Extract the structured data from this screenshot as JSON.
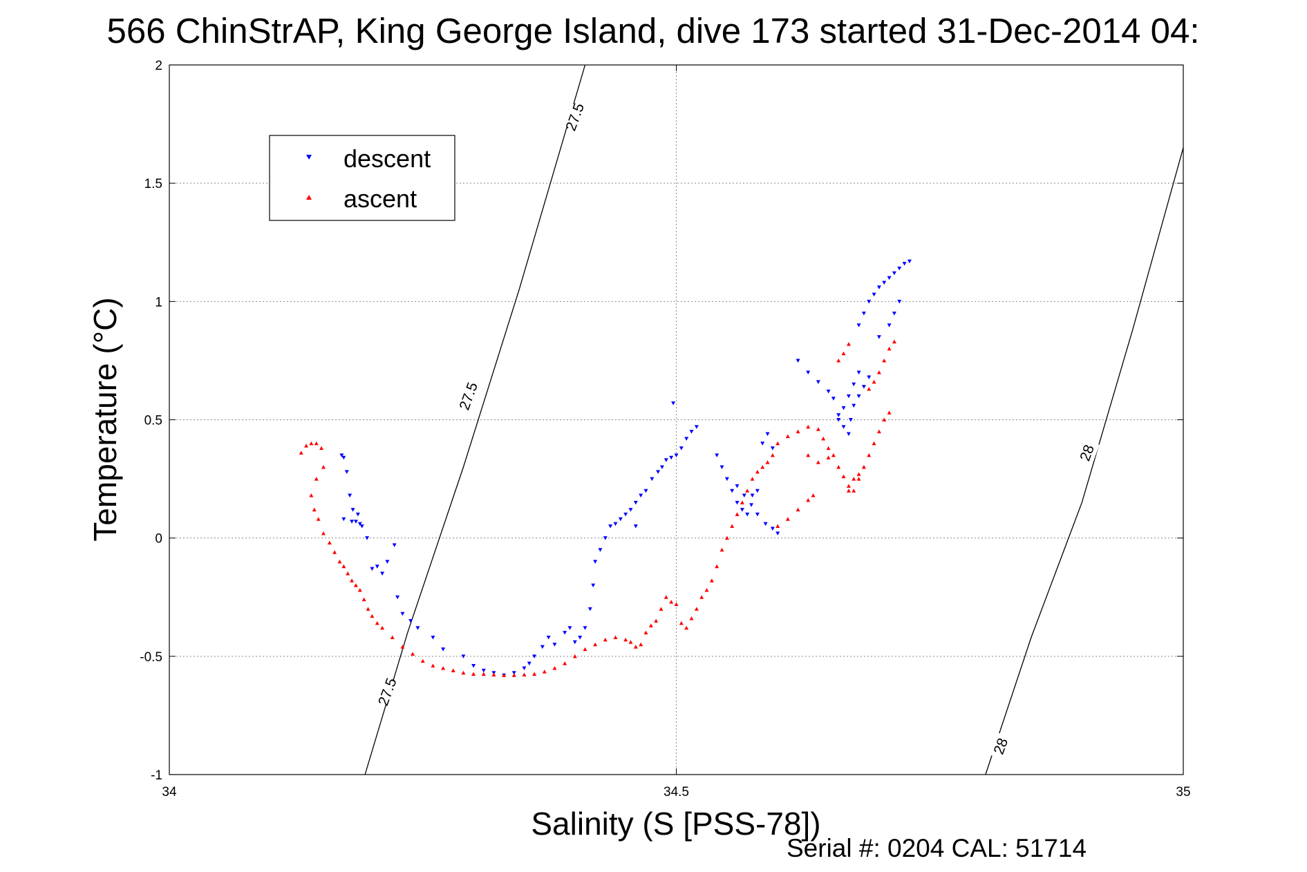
{
  "title": "566 ChinStrAP, King George Island, dive 173 started 31-Dec-2014 04:",
  "footer": "Serial #: 0204  CAL: 51714",
  "chart_data": {
    "type": "scatter",
    "title": "566 ChinStrAP, King George Island, dive 173 started 31-Dec-2014 04:",
    "xlabel": "Salinity (S [PSS-78])",
    "ylabel": "Temperature (°C)",
    "xlim": [
      34,
      35
    ],
    "ylim": [
      -1,
      2
    ],
    "xticks": [
      34,
      34.5,
      35
    ],
    "xtick_labels": [
      "34",
      "34.5",
      "35"
    ],
    "yticks": [
      -1,
      -0.5,
      0,
      0.5,
      1,
      1.5,
      2
    ],
    "ytick_labels": [
      "-1",
      "-0.5",
      "0",
      "0.5",
      "1",
      "1.5",
      "2"
    ],
    "grid": true,
    "legend_position": "top-left",
    "contours": [
      {
        "label": "27.5",
        "x": [
          34.193,
          34.235,
          34.29,
          34.345,
          34.41
        ],
        "y": [
          -1,
          -0.4,
          0.3,
          1.05,
          2
        ]
      },
      {
        "label": "28",
        "x": [
          34.805,
          34.85,
          34.9,
          34.95,
          35
        ],
        "y": [
          -1,
          -0.42,
          0.15,
          0.88,
          1.65
        ]
      }
    ],
    "contour_labels": [
      {
        "text": "27.5",
        "x": 34.4,
        "y": 1.78
      },
      {
        "text": "27.5",
        "x": 34.295,
        "y": 0.6
      },
      {
        "text": "27.5",
        "x": 34.215,
        "y": -0.65
      },
      {
        "text": "28",
        "x": 34.905,
        "y": 0.36
      },
      {
        "text": "28",
        "x": 34.82,
        "y": -0.88
      }
    ],
    "series": [
      {
        "name": "descent",
        "color": "#0000ff",
        "marker": "triangle-down",
        "x": [
          34.17,
          34.172,
          34.18,
          34.184,
          34.188,
          34.172,
          34.175,
          34.178,
          34.181,
          34.186,
          34.19,
          34.195,
          34.205,
          34.2,
          34.21,
          34.215,
          34.222,
          34.225,
          34.23,
          34.238,
          34.245,
          34.26,
          34.27,
          34.29,
          34.3,
          34.31,
          34.32,
          34.33,
          34.34,
          34.35,
          34.355,
          34.36,
          34.368,
          34.374,
          34.38,
          34.39,
          34.395,
          34.4,
          34.405,
          34.41,
          34.415,
          34.418,
          34.42,
          34.425,
          34.43,
          34.435,
          34.44,
          34.445,
          34.45,
          34.455,
          34.46,
          34.465,
          34.47,
          34.476,
          34.482,
          34.486,
          34.49,
          34.495,
          34.5,
          34.505,
          34.51,
          34.515,
          34.52,
          34.54,
          34.545,
          34.55,
          34.555,
          34.56,
          34.565,
          34.57,
          34.575,
          34.58,
          34.585,
          34.59,
          34.595,
          34.56,
          34.567,
          34.574,
          34.58,
          34.588,
          34.595,
          34.6,
          34.497,
          34.46,
          34.62,
          34.63,
          34.64,
          34.65,
          34.655,
          34.66,
          34.665,
          34.67,
          34.672,
          34.675,
          34.68,
          34.685,
          34.69,
          34.68,
          34.685,
          34.69,
          34.695,
          34.7,
          34.705,
          34.71,
          34.715,
          34.72,
          34.725,
          34.73,
          34.72,
          34.715,
          34.71,
          34.7,
          34.66,
          34.665,
          34.67,
          34.675,
          34.68
        ],
        "y": [
          0.35,
          0.08,
          0.07,
          0.07,
          0.06,
          0.34,
          0.28,
          0.18,
          0.12,
          0.1,
          0.05,
          0.0,
          -0.12,
          -0.13,
          -0.15,
          -0.1,
          -0.03,
          -0.25,
          -0.32,
          -0.35,
          -0.38,
          -0.42,
          -0.47,
          -0.5,
          -0.54,
          -0.56,
          -0.57,
          -0.58,
          -0.57,
          -0.55,
          -0.53,
          -0.5,
          -0.46,
          -0.42,
          -0.45,
          -0.4,
          -0.38,
          -0.44,
          -0.42,
          -0.38,
          -0.3,
          -0.2,
          -0.1,
          -0.05,
          0.0,
          0.05,
          0.06,
          0.08,
          0.1,
          0.12,
          0.15,
          0.18,
          0.2,
          0.25,
          0.28,
          0.3,
          0.33,
          0.34,
          0.35,
          0.38,
          0.42,
          0.45,
          0.47,
          0.35,
          0.3,
          0.25,
          0.2,
          0.15,
          0.12,
          0.1,
          0.18,
          0.2,
          0.4,
          0.44,
          0.38,
          0.22,
          0.18,
          0.14,
          0.1,
          0.06,
          0.04,
          0.02,
          0.57,
          0.05,
          0.75,
          0.7,
          0.66,
          0.62,
          0.59,
          0.52,
          0.47,
          0.44,
          0.5,
          0.56,
          0.6,
          0.64,
          0.68,
          0.9,
          0.95,
          1.0,
          1.03,
          1.06,
          1.08,
          1.1,
          1.12,
          1.14,
          1.16,
          1.17,
          1.0,
          0.95,
          0.9,
          0.85,
          0.5,
          0.55,
          0.6,
          0.65,
          0.7
        ]
      },
      {
        "name": "ascent",
        "color": "#ff0000",
        "marker": "triangle-up",
        "x": [
          34.13,
          34.135,
          34.14,
          34.145,
          34.15,
          34.152,
          34.145,
          34.14,
          34.143,
          34.147,
          34.152,
          34.158,
          34.163,
          34.168,
          34.172,
          34.176,
          34.18,
          34.184,
          34.188,
          34.192,
          34.196,
          34.2,
          34.205,
          34.21,
          34.22,
          34.23,
          34.24,
          34.25,
          34.26,
          34.27,
          34.28,
          34.29,
          34.3,
          34.31,
          34.32,
          34.33,
          34.34,
          34.35,
          34.36,
          34.37,
          34.38,
          34.39,
          34.4,
          34.41,
          34.42,
          34.43,
          34.44,
          34.45,
          34.455,
          34.46,
          34.465,
          34.47,
          34.475,
          34.48,
          34.485,
          34.49,
          34.495,
          34.5,
          34.505,
          34.51,
          34.515,
          34.52,
          34.525,
          34.53,
          34.535,
          34.54,
          34.545,
          34.55,
          34.555,
          34.56,
          34.565,
          34.57,
          34.575,
          34.58,
          34.585,
          34.59,
          34.595,
          34.6,
          34.61,
          34.62,
          34.63,
          34.64,
          34.645,
          34.65,
          34.655,
          34.66,
          34.665,
          34.67,
          34.675,
          34.68,
          34.685,
          34.69,
          34.695,
          34.7,
          34.705,
          34.71,
          34.69,
          34.695,
          34.7,
          34.705,
          34.71,
          34.715,
          34.63,
          34.64,
          34.65,
          34.6,
          34.61,
          34.62,
          34.63,
          34.635,
          34.66,
          34.665,
          34.67,
          34.67,
          34.675,
          34.68,
          34.685
        ],
        "y": [
          0.36,
          0.39,
          0.4,
          0.4,
          0.38,
          0.3,
          0.25,
          0.18,
          0.12,
          0.08,
          0.02,
          -0.02,
          -0.06,
          -0.1,
          -0.12,
          -0.15,
          -0.18,
          -0.2,
          -0.22,
          -0.26,
          -0.3,
          -0.33,
          -0.36,
          -0.38,
          -0.42,
          -0.46,
          -0.49,
          -0.52,
          -0.54,
          -0.55,
          -0.56,
          -0.57,
          -0.575,
          -0.575,
          -0.578,
          -0.58,
          -0.58,
          -0.578,
          -0.575,
          -0.565,
          -0.55,
          -0.53,
          -0.5,
          -0.47,
          -0.45,
          -0.43,
          -0.42,
          -0.43,
          -0.44,
          -0.46,
          -0.45,
          -0.4,
          -0.37,
          -0.35,
          -0.3,
          -0.25,
          -0.27,
          -0.28,
          -0.36,
          -0.38,
          -0.34,
          -0.3,
          -0.25,
          -0.22,
          -0.18,
          -0.12,
          -0.05,
          0.0,
          0.05,
          0.1,
          0.15,
          0.2,
          0.25,
          0.28,
          0.3,
          0.32,
          0.35,
          0.4,
          0.43,
          0.45,
          0.47,
          0.46,
          0.42,
          0.38,
          0.35,
          0.3,
          0.26,
          0.22,
          0.2,
          0.25,
          0.3,
          0.35,
          0.4,
          0.45,
          0.5,
          0.53,
          0.63,
          0.66,
          0.7,
          0.75,
          0.8,
          0.83,
          0.35,
          0.32,
          0.34,
          0.05,
          0.08,
          0.12,
          0.16,
          0.18,
          0.75,
          0.78,
          0.82,
          0.2,
          0.25,
          0.27,
          0.3
        ]
      }
    ]
  }
}
